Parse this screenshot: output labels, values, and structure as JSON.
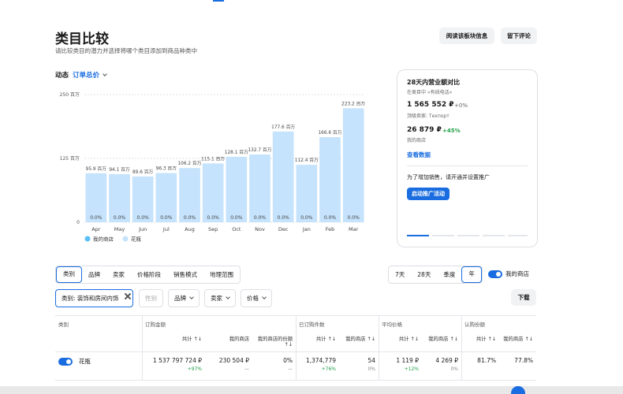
{
  "header": {
    "title": "类目比较",
    "subtitle": "请比较类目的潜力并选择将哪个类目添加到商品种类中",
    "buttons": [
      "阅读该板块信息",
      "留下评论"
    ]
  },
  "metric": {
    "label": "动态",
    "selected": "订单总价"
  },
  "chart_data": {
    "type": "bar",
    "stacked": true,
    "categories": [
      "Apr",
      "May",
      "Jun",
      "Jul",
      "Aug",
      "Sep",
      "Oct",
      "Nov",
      "Dec",
      "Jan",
      "Feb",
      "Mar"
    ],
    "series": [
      {
        "name": "我的商店",
        "color": "#5bc0f5",
        "values": [
          0,
          0,
          0,
          0,
          0,
          0,
          0,
          0,
          0,
          0,
          0,
          0
        ],
        "value_labels": [
          "0.0%",
          "0.0%",
          "0.0%",
          "0.0%",
          "0.0%",
          "0.0%",
          "0.0%",
          "0.0%",
          "0.0%",
          "0.0%",
          "0.0%",
          "0.0%"
        ]
      },
      {
        "name": "花瓶",
        "color": "#c5e3fc",
        "values": [
          95.9,
          94.1,
          89.6,
          96.3,
          106.2,
          115.1,
          128.1,
          132.7,
          177.6,
          112.4,
          166.6,
          223.2
        ],
        "value_labels": [
          "95.9 百万",
          "94.1 百万",
          "89.6 百万",
          "96.3 百万",
          "106.2 百万",
          "115.1 百万",
          "128.1 百万",
          "132.7 百万",
          "177.6 百万",
          "112.4 百万",
          "166.6 百万",
          "223.2 百万"
        ]
      }
    ],
    "ylim": [
      0,
      250
    ],
    "yticks": [
      0,
      {
        "value": 125,
        "label": "125 百万"
      },
      {
        "value": 250,
        "label": "250 百万"
      }
    ],
    "grid": true,
    "legend": "bottom-left"
  },
  "card": {
    "title": "28天内营业额对比",
    "context": "在类目中 «有线电话»",
    "total": "1 565 552 ₽",
    "total_change": "+0%",
    "top_seller": "顶级卖家: Техпорт",
    "my": "26 879 ₽",
    "my_change": "+45%",
    "my_label": "我的商店",
    "link": "查看数据",
    "promo": "为了增加销售，请开通并设置推广",
    "button": "启动推广活动"
  },
  "tabs": {
    "items": [
      "类别",
      "品牌",
      "卖家",
      "价格阶段",
      "销售模式",
      "地理范围"
    ],
    "selected": 0
  },
  "periods": {
    "items": [
      "7天",
      "28天",
      "季度",
      "年"
    ],
    "selected": 3
  },
  "my_store_toggle": "我的商店",
  "filters": {
    "chip": "类别: 装饰和房间内饰",
    "items": [
      "性别",
      "品牌",
      "卖家",
      "价格"
    ],
    "download": "下载"
  },
  "table": {
    "groups": [
      "类别",
      "订购金额",
      "已订购件数",
      "平均价格",
      "认购份额"
    ],
    "subheaders": [
      "共计 ↑↓",
      "我的商店",
      "我的商店的份额 ↑↓",
      "共计 ↑↓",
      "我的商店 ↑↓",
      "共计 ↑↓",
      "我的商店 ↑↓",
      "共计 ↑↓",
      "我的商店 ↑↓"
    ],
    "rows": [
      {
        "name": "花瓶",
        "cells": [
          {
            "value": "1 537 797 724 ₽",
            "change": "+97%"
          },
          {
            "value": "230 504 ₽",
            "change": "—"
          },
          {
            "value": "0%",
            "change": "—"
          },
          {
            "value": "1,374,779",
            "change": "+76%"
          },
          {
            "value": "54",
            "change": "0%"
          },
          {
            "value": "1 119 ₽",
            "change": "+12%"
          },
          {
            "value": "4 269 ₽",
            "change": "0%"
          },
          {
            "value": "81.7%"
          },
          {
            "value": "77.8%"
          }
        ]
      }
    ]
  }
}
